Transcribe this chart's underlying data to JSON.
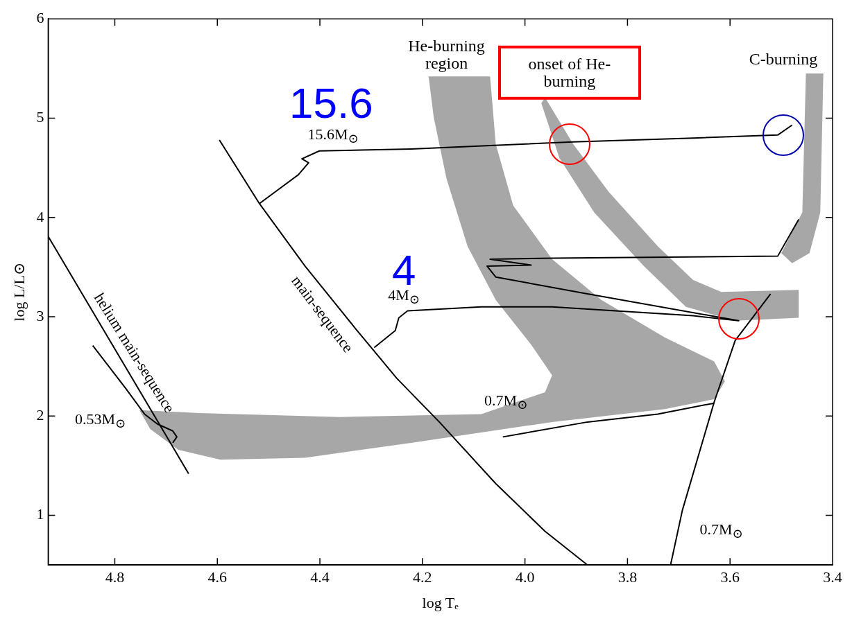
{
  "chart_data": {
    "type": "line",
    "xlabel": "log Tₑ",
    "ylabel": "log L/L⊙",
    "xlim": [
      4.93,
      3.4
    ],
    "ylim": [
      0.5,
      6
    ],
    "xticks": [
      4.8,
      4.6,
      4.4,
      4.2,
      {
        "value": 4,
        "label": "4.0"
      },
      3.8,
      3.6,
      3.4
    ],
    "yticks": [
      1,
      2,
      3,
      4,
      5,
      6
    ],
    "grid": false,
    "legend": false,
    "marker": "none",
    "line_style": "solid",
    "series": [
      {
        "type": "area",
        "color": "#8a8a8a",
        "x": [
          4.188,
          4.068,
          4.057,
          4.023,
          3.947,
          3.851,
          3.727,
          3.631,
          3.61,
          3.631,
          3.727,
          3.947,
          4.222,
          4.429,
          4.594,
          4.676,
          4.731,
          4.752,
          4.635,
          4.36,
          4.085,
          3.961,
          3.947,
          3.988,
          4.057,
          4.112,
          4.153,
          4.178
        ],
        "values": [
          5.42,
          5.42,
          4.74,
          4.12,
          3.58,
          3.17,
          2.79,
          2.55,
          2.35,
          2.17,
          2.07,
          1.94,
          1.73,
          1.58,
          1.56,
          1.66,
          1.87,
          2.06,
          2.03,
          1.99,
          2.02,
          2.24,
          2.41,
          2.72,
          3.17,
          3.71,
          4.39,
          5.01
        ]
      },
      {
        "type": "area",
        "color": "#8a8a8a",
        "x": [
          3.961,
          3.906,
          3.837,
          3.741,
          3.672,
          3.617,
          3.466,
          3.466,
          3.59,
          3.686,
          3.768,
          3.865,
          3.933,
          3.968
        ],
        "values": [
          5.21,
          4.74,
          4.26,
          3.71,
          3.37,
          3.25,
          3.27,
          2.99,
          2.96,
          3.1,
          3.51,
          4.05,
          4.6,
          5.15
        ]
      },
      {
        "type": "area",
        "color": "#8a8a8a",
        "x": [
          3.452,
          3.418,
          3.424,
          3.445,
          3.479,
          3.5,
          3.459
        ],
        "values": [
          5.45,
          5.45,
          4.05,
          3.64,
          3.54,
          3.64,
          4.05
        ]
      },
      {
        "color": "#000000",
        "x": [
          4.93,
          4.656
        ],
        "values": [
          3.81,
          1.42
        ]
      },
      {
        "color": "#000000",
        "x": [
          4.596,
          4.518,
          4.429,
          4.332,
          4.25,
          4.167,
          4.057,
          3.961,
          3.878
        ],
        "values": [
          4.78,
          4.14,
          3.51,
          2.89,
          2.38,
          1.94,
          1.32,
          0.84,
          0.5
        ]
      },
      {
        "color": "#000000",
        "x": [
          4.843,
          4.779,
          4.742,
          4.717,
          4.687,
          4.679,
          4.687
        ],
        "values": [
          2.71,
          2.28,
          2.02,
          1.92,
          1.85,
          1.79,
          1.73
        ]
      },
      {
        "color": "#000000",
        "x": [
          4.518,
          4.442,
          4.422,
          4.435,
          4.401,
          4.222,
          3.906,
          3.672,
          3.507,
          3.479
        ],
        "values": [
          4.14,
          4.43,
          4.55,
          4.59,
          4.67,
          4.69,
          4.76,
          4.8,
          4.83,
          4.93
        ]
      },
      {
        "color": "#000000",
        "x": [
          4.294,
          4.253,
          4.246,
          4.229,
          4.085,
          3.947,
          3.672,
          3.583,
          3.878,
          4.057,
          4.074,
          3.988,
          4.068,
          3.947,
          3.507,
          3.466
        ],
        "values": [
          2.69,
          2.86,
          2.99,
          3.06,
          3.1,
          3.1,
          3.01,
          2.96,
          3.23,
          3.4,
          3.51,
          3.52,
          3.58,
          3.59,
          3.61,
          3.98
        ]
      },
      {
        "color": "#000000",
        "x": [
          3.716,
          3.693,
          3.631,
          3.59,
          3.521
        ],
        "values": [
          0.5,
          1.05,
          2.14,
          2.76,
          3.23
        ]
      },
      {
        "color": "#000000",
        "x": [
          4.043,
          3.878,
          3.741,
          3.631
        ],
        "values": [
          1.79,
          1.94,
          2.02,
          2.13
        ]
      }
    ],
    "annotations": [
      "He-burning region",
      "onset of He-burning",
      "C-burning",
      "15.6",
      "15.6M$_{⊙}$",
      "4",
      "4M$_{⊙}$",
      "0.7M$_{⊙}$",
      "0.53M$_{⊙}$",
      "0.7M$_{⊙}$",
      "helium main-sequence",
      "main-sequence"
    ]
  }
}
